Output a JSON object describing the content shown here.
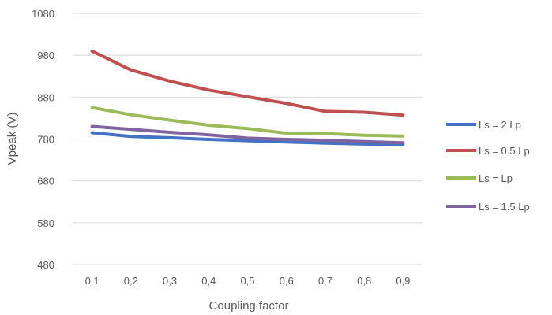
{
  "chart_data": {
    "type": "line",
    "title": "",
    "xlabel": "Coupling factor",
    "ylabel": "Vpeak (V)",
    "x": [
      "0,1",
      "0,2",
      "0,3",
      "0,4",
      "0,5",
      "0,6",
      "0,7",
      "0,8",
      "0,9"
    ],
    "ylim": [
      480,
      1080
    ],
    "yticks": [
      480,
      580,
      680,
      780,
      880,
      980,
      1080
    ],
    "grid": true,
    "legend": "right",
    "series": [
      {
        "name": "Ls = 2 Lp",
        "color": "#4472C4",
        "values": [
          795,
          786,
          783,
          779,
          776,
          773,
          770,
          768,
          766
        ]
      },
      {
        "name": "Ls = 0.5 Lp",
        "color": "#C0504D",
        "values": [
          990,
          945,
          918,
          897,
          881,
          865,
          846,
          844,
          837
        ]
      },
      {
        "name": "Ls = Lp",
        "color": "#9BBB59",
        "values": [
          855,
          838,
          825,
          813,
          805,
          794,
          793,
          789,
          787
        ]
      },
      {
        "name": "Ls = 1.5 Lp",
        "color": "#8064A2",
        "values": [
          810,
          803,
          796,
          790,
          782,
          779,
          777,
          774,
          771
        ]
      }
    ]
  }
}
